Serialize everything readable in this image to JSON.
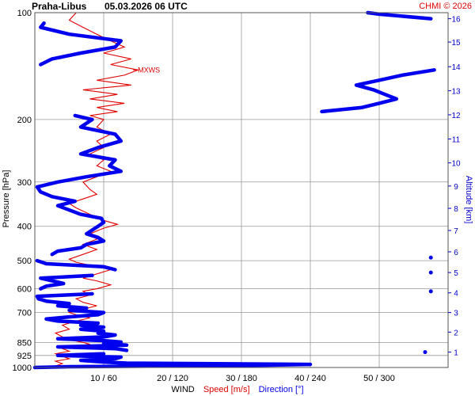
{
  "header": {
    "station": "Praha-Libus",
    "datetime": "05.03.2026 06 UTC",
    "credit": "CHMI © 2026"
  },
  "colors": {
    "speed": "#e00000",
    "direction": "#0000ee",
    "grid": "#999999",
    "altitude_axis": "#0000cc",
    "text": "#000000"
  },
  "chart_data": {
    "type": "line",
    "pressure_axis": {
      "label": "Pressure [hPa]",
      "scale": "log",
      "range": [
        1000,
        100
      ],
      "ticks": [
        {
          "value": 100,
          "label": "100"
        },
        {
          "value": 200,
          "label": "200"
        },
        {
          "value": 300,
          "label": "300"
        },
        {
          "value": 400,
          "label": "400"
        },
        {
          "value": 500,
          "label": "500"
        },
        {
          "value": 600,
          "label": "600"
        },
        {
          "value": 700,
          "label": "700"
        },
        {
          "value": 850,
          "label": "850"
        },
        {
          "value": 925,
          "label": "925"
        },
        {
          "value": 1000,
          "label": "1000"
        }
      ]
    },
    "altitude_axis": {
      "label": "Altitude [km]",
      "ticks": [
        {
          "p": 905,
          "label": "1"
        },
        {
          "p": 795,
          "label": "2"
        },
        {
          "p": 700,
          "label": "3"
        },
        {
          "p": 616,
          "label": "4"
        },
        {
          "p": 540,
          "label": "5"
        },
        {
          "p": 472,
          "label": "6"
        },
        {
          "p": 411,
          "label": "7"
        },
        {
          "p": 356,
          "label": "8"
        },
        {
          "p": 308,
          "label": "9"
        },
        {
          "p": 265,
          "label": "10"
        },
        {
          "p": 227,
          "label": "11"
        },
        {
          "p": 194,
          "label": "12"
        },
        {
          "p": 166,
          "label": "13"
        },
        {
          "p": 142,
          "label": "14"
        },
        {
          "p": 121,
          "label": "15"
        },
        {
          "p": 104,
          "label": "16"
        }
      ]
    },
    "x_axis": {
      "label_parts": [
        {
          "text": "WIND",
          "color": "#000000"
        },
        {
          "text": "Speed [m/s]",
          "color": "#e00000"
        },
        {
          "text": "Direction [°]",
          "color": "#0000ee"
        }
      ],
      "speed_range": [
        0,
        60
      ],
      "direction_range": [
        0,
        360
      ],
      "ticks": [
        {
          "speed": 10,
          "direction": 60,
          "label": "10 / 60"
        },
        {
          "speed": 20,
          "direction": 120,
          "label": "20 / 120"
        },
        {
          "speed": 30,
          "direction": 180,
          "label": "30 / 180"
        },
        {
          "speed": 40,
          "direction": 240,
          "label": "40 / 240"
        },
        {
          "speed": 50,
          "direction": 300,
          "label": "50 / 300"
        }
      ]
    },
    "annotation": {
      "text": "MXWS",
      "p": 145,
      "speed": 14.5
    },
    "series": [
      {
        "name": "Speed [m/s]",
        "unit": "m/s",
        "points": [
          [
            1000,
            1
          ],
          [
            990,
            3
          ],
          [
            975,
            4
          ],
          [
            960,
            3
          ],
          [
            945,
            5
          ],
          [
            930,
            4
          ],
          [
            915,
            3
          ],
          [
            900,
            5
          ],
          [
            885,
            4
          ],
          [
            870,
            6
          ],
          [
            860,
            8
          ],
          [
            850,
            7
          ],
          [
            835,
            5
          ],
          [
            820,
            4
          ],
          [
            800,
            3
          ],
          [
            780,
            5
          ],
          [
            760,
            4
          ],
          [
            740,
            6
          ],
          [
            725,
            8
          ],
          [
            710,
            6
          ],
          [
            700,
            5
          ],
          [
            685,
            7
          ],
          [
            670,
            9
          ],
          [
            655,
            7
          ],
          [
            640,
            6
          ],
          [
            625,
            8
          ],
          [
            610,
            7
          ],
          [
            600,
            9
          ],
          [
            585,
            11
          ],
          [
            570,
            9
          ],
          [
            560,
            7
          ],
          [
            545,
            9
          ],
          [
            530,
            11
          ],
          [
            515,
            8
          ],
          [
            505,
            6
          ],
          [
            495,
            5
          ],
          [
            480,
            7
          ],
          [
            465,
            9
          ],
          [
            450,
            7
          ],
          [
            435,
            9
          ],
          [
            420,
            8
          ],
          [
            405,
            10
          ],
          [
            395,
            12
          ],
          [
            385,
            10
          ],
          [
            370,
            8
          ],
          [
            355,
            6
          ],
          [
            345,
            5
          ],
          [
            335,
            7
          ],
          [
            325,
            9
          ],
          [
            315,
            8
          ],
          [
            300,
            7
          ],
          [
            290,
            9
          ],
          [
            280,
            11
          ],
          [
            270,
            9
          ],
          [
            260,
            10
          ],
          [
            250,
            8
          ],
          [
            240,
            10
          ],
          [
            230,
            9
          ],
          [
            220,
            11
          ],
          [
            210,
            9
          ],
          [
            200,
            10
          ],
          [
            195,
            8
          ],
          [
            190,
            12
          ],
          [
            185,
            9
          ],
          [
            180,
            13
          ],
          [
            175,
            8
          ],
          [
            170,
            12
          ],
          [
            165,
            7
          ],
          [
            160,
            14
          ],
          [
            155,
            9
          ],
          [
            150,
            13
          ],
          [
            145,
            15
          ],
          [
            140,
            11
          ],
          [
            135,
            14
          ],
          [
            130,
            10
          ],
          [
            125,
            13
          ],
          [
            120,
            11
          ],
          [
            115,
            9
          ],
          [
            110,
            7
          ],
          [
            105,
            5
          ],
          [
            100,
            6
          ]
        ]
      },
      {
        "name": "Direction [°]",
        "unit": "deg",
        "points": [
          [
            1000,
            0
          ],
          [
            995,
            30
          ],
          [
            990,
            120
          ],
          [
            985,
            200
          ],
          [
            980,
            240
          ],
          [
            972,
            80
          ],
          [
            965,
            60
          ],
          [
            955,
            40
          ],
          [
            945,
            70
          ],
          [
            935,
            75
          ],
          [
            925,
            20
          ],
          [
            915,
            60
          ],
          [
            905,
            340
          ],
          [
            895,
            80
          ],
          [
            885,
            70
          ],
          [
            875,
            20
          ],
          [
            865,
            80
          ],
          [
            855,
            60
          ],
          [
            848,
            75
          ],
          [
            840,
            60
          ],
          [
            830,
            20
          ],
          [
            820,
            60
          ],
          [
            810,
            70
          ],
          [
            800,
            55
          ],
          [
            790,
            60
          ],
          [
            780,
            40
          ],
          [
            770,
            60
          ],
          [
            760,
            40
          ],
          [
            750,
            55
          ],
          [
            740,
            20
          ],
          [
            730,
            10
          ],
          [
            720,
            30
          ],
          [
            710,
            55
          ],
          [
            700,
            60
          ],
          [
            690,
            30
          ],
          [
            680,
            45
          ],
          [
            670,
            20
          ],
          [
            660,
            30
          ],
          [
            650,
            10
          ],
          [
            640,
            3
          ],
          [
            630,
            2
          ],
          [
            620,
            50
          ],
          [
            610,
            345
          ],
          [
            600,
            5
          ],
          [
            590,
            10
          ],
          [
            580,
            25
          ],
          [
            570,
            15
          ],
          [
            560,
            5
          ],
          [
            550,
            50
          ],
          [
            540,
            345
          ],
          [
            530,
            70
          ],
          [
            520,
            60
          ],
          [
            510,
            10
          ],
          [
            500,
            2
          ],
          [
            490,
            345
          ],
          [
            480,
            15
          ],
          [
            470,
            20
          ],
          [
            460,
            40
          ],
          [
            450,
            45
          ],
          [
            440,
            60
          ],
          [
            430,
            55
          ],
          [
            420,
            45
          ],
          [
            410,
            50
          ],
          [
            400,
            55
          ],
          [
            390,
            60
          ],
          [
            380,
            58
          ],
          [
            370,
            40
          ],
          [
            360,
            30
          ],
          [
            350,
            20
          ],
          [
            340,
            35
          ],
          [
            330,
            15
          ],
          [
            320,
            5
          ],
          [
            310,
            2
          ],
          [
            300,
            20
          ],
          [
            290,
            45
          ],
          [
            280,
            75
          ],
          [
            270,
            65
          ],
          [
            260,
            70
          ],
          [
            250,
            40
          ],
          [
            240,
            55
          ],
          [
            230,
            75
          ],
          [
            220,
            70
          ],
          [
            210,
            40
          ],
          [
            200,
            50
          ],
          [
            195,
            35
          ],
          [
            190,
            250
          ],
          [
            185,
            285
          ],
          [
            180,
            300
          ],
          [
            175,
            315
          ],
          [
            170,
            305
          ],
          [
            165,
            295
          ],
          [
            160,
            280
          ],
          [
            155,
            300
          ],
          [
            150,
            320
          ],
          [
            145,
            348
          ],
          [
            140,
            5
          ],
          [
            135,
            15
          ],
          [
            130,
            40
          ],
          [
            125,
            70
          ],
          [
            120,
            75
          ],
          [
            115,
            30
          ],
          [
            110,
            5
          ],
          [
            107,
            8
          ],
          [
            104,
            345
          ],
          [
            101,
            300
          ],
          [
            100,
            290
          ]
        ]
      }
    ]
  }
}
